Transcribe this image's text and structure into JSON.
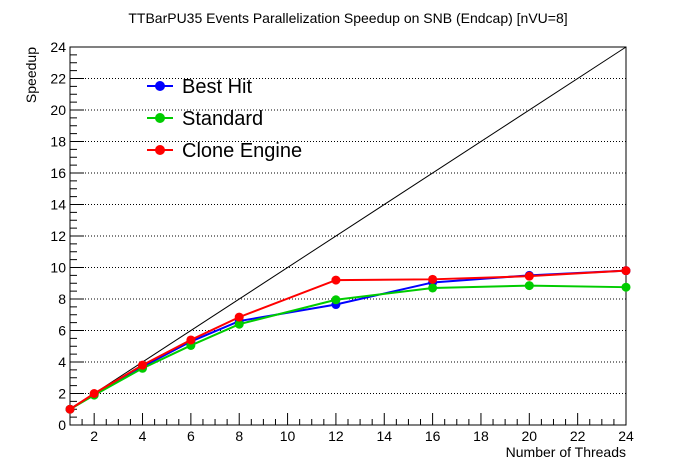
{
  "chart_data": {
    "type": "line",
    "title": "TTBarPU35 Events Parallelization Speedup on SNB (Endcap) [nVU=8]",
    "xlabel": "Number of Threads",
    "ylabel": "Speedup",
    "xlim": [
      1,
      24
    ],
    "ylim": [
      0,
      24
    ],
    "x_ticks": [
      2,
      4,
      6,
      8,
      10,
      12,
      14,
      16,
      18,
      20,
      22,
      24
    ],
    "y_ticks": [
      0,
      2,
      4,
      6,
      8,
      10,
      12,
      14,
      16,
      18,
      20,
      22,
      24
    ],
    "grid": "horizontal dotted",
    "legend_position": "top-left",
    "reference_line": {
      "description": "ideal",
      "x": [
        1,
        24
      ],
      "y": [
        1,
        24
      ],
      "color": "#000000"
    },
    "series": [
      {
        "name": "Best Hit",
        "color": "#0000ff",
        "x": [
          1,
          2,
          4,
          6,
          8,
          12,
          16,
          20,
          24
        ],
        "y": [
          1.0,
          1.95,
          3.7,
          5.3,
          6.6,
          7.65,
          9.05,
          9.5,
          9.8
        ]
      },
      {
        "name": "Standard",
        "color": "#00cc00",
        "x": [
          1,
          2,
          4,
          6,
          8,
          12,
          16,
          20,
          24
        ],
        "y": [
          1.0,
          1.9,
          3.6,
          5.05,
          6.4,
          7.95,
          8.7,
          8.85,
          8.75
        ]
      },
      {
        "name": "Clone Engine",
        "color": "#ff0000",
        "x": [
          1,
          2,
          4,
          6,
          8,
          12,
          16,
          20,
          24
        ],
        "y": [
          1.0,
          2.0,
          3.8,
          5.4,
          6.85,
          9.2,
          9.25,
          9.45,
          9.8
        ]
      }
    ]
  }
}
